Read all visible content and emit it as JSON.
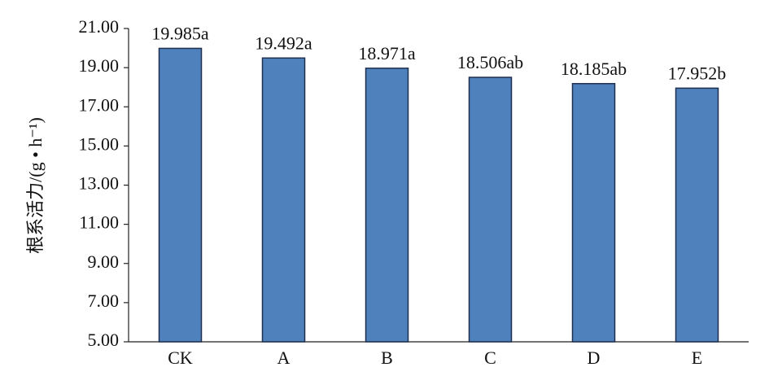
{
  "chart_data": {
    "type": "bar",
    "y_label": "根系活力/(g • h⁻¹)",
    "categories": [
      "CK",
      "A",
      "B",
      "C",
      "D",
      "E"
    ],
    "values": [
      19.985,
      19.492,
      18.971,
      18.506,
      18.185,
      17.952
    ],
    "value_labels": [
      "19.985a",
      "19.492a",
      "18.971a",
      "18.506ab",
      "18.185ab",
      "17.952b"
    ],
    "color": "#4f81bd",
    "ylim": [
      5,
      21
    ],
    "yticks": [
      {
        "value": 5,
        "label": "5.00"
      },
      {
        "value": 7,
        "label": "7.00"
      },
      {
        "value": 9,
        "label": "9.00"
      },
      {
        "value": 11,
        "label": "11.00"
      },
      {
        "value": 13,
        "label": "13.00"
      },
      {
        "value": 15,
        "label": "15.00"
      },
      {
        "value": 17,
        "label": "17.00"
      },
      {
        "value": 19,
        "label": "19.00"
      },
      {
        "value": 21,
        "label": "21.00"
      }
    ],
    "grid": false
  }
}
